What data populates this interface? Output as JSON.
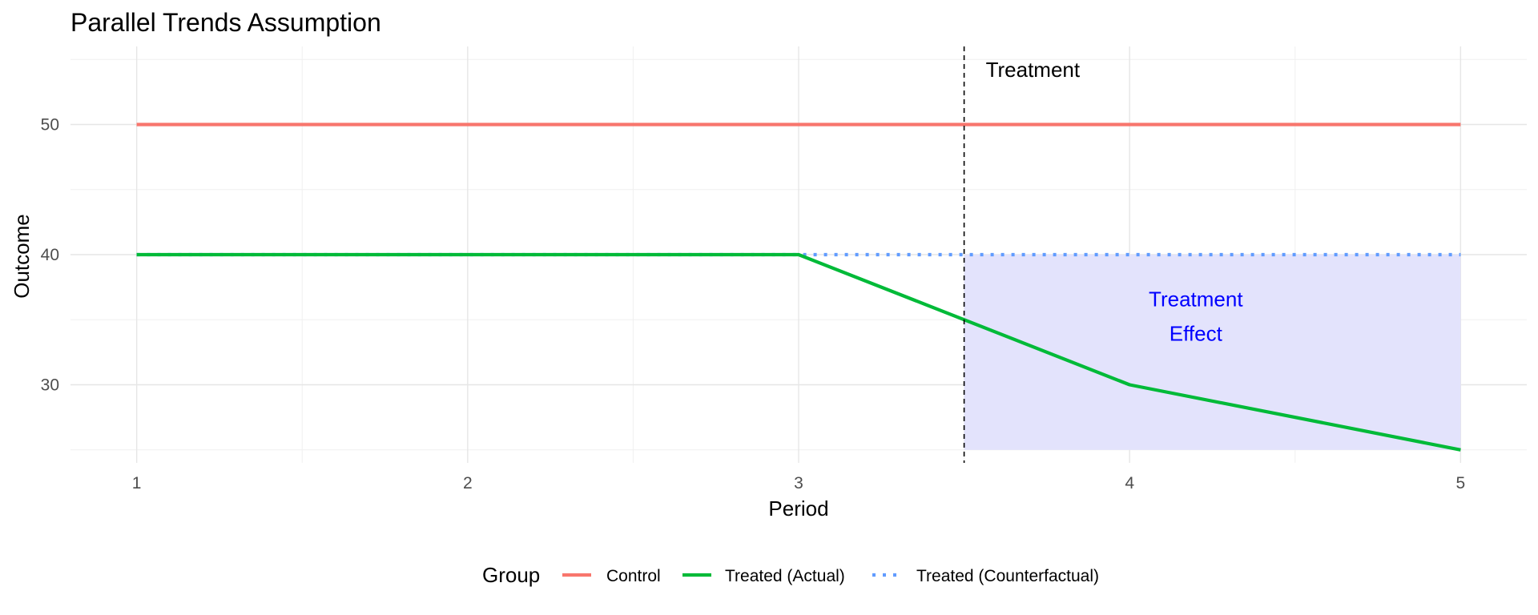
{
  "chart_data": {
    "type": "line",
    "title": "Parallel Trends Assumption",
    "xlabel": "Period",
    "ylabel": "Outcome",
    "x_ticks": [
      1,
      2,
      3,
      4,
      5
    ],
    "y_ticks": [
      30,
      40,
      50
    ],
    "xlim": [
      0.8,
      5.2
    ],
    "ylim": [
      24,
      56
    ],
    "grid": true,
    "legend": {
      "position": "bottom",
      "title": "Group"
    },
    "series": [
      {
        "name": "Control",
        "color": "#F8766D",
        "style": "solid",
        "x": [
          1,
          2,
          3,
          4,
          5
        ],
        "y": [
          50,
          50,
          50,
          50,
          50
        ]
      },
      {
        "name": "Treated (Actual)",
        "color": "#00BA38",
        "style": "solid",
        "x": [
          1,
          2,
          3,
          4,
          5
        ],
        "y": [
          40,
          40,
          40,
          30,
          25
        ]
      },
      {
        "name": "Treated (Counterfactual)",
        "color": "#619CFF",
        "style": "dotted",
        "x": [
          1,
          2,
          3,
          4,
          5
        ],
        "y": [
          40,
          40,
          40,
          40,
          40
        ]
      }
    ],
    "treatment_line": {
      "x": 3.5,
      "label": "Treatment"
    },
    "effect_region": {
      "x": [
        3.5,
        5
      ],
      "ymin": 25,
      "ymax": 40,
      "label_line1": "Treatment",
      "label_line2": "Effect",
      "label_x": 4.2,
      "label_y": 34.5,
      "fill_color": "#E3E3FC"
    }
  }
}
